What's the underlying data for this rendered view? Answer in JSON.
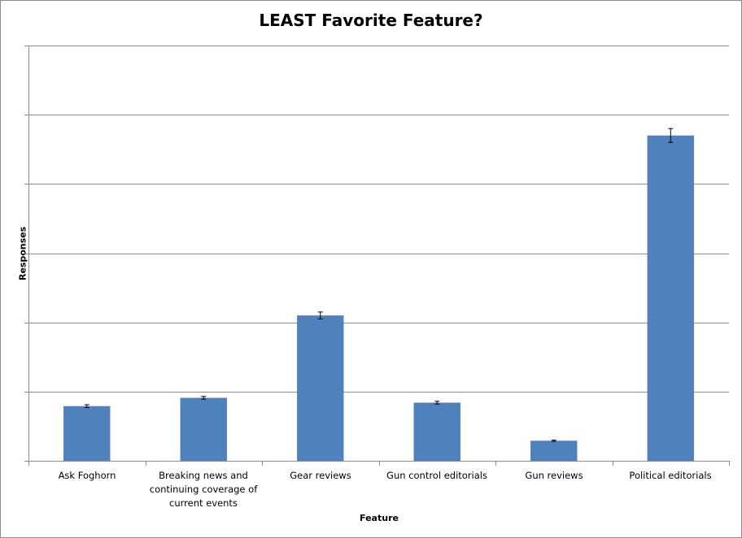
{
  "chart_data": {
    "type": "bar",
    "title": "LEAST Favorite Feature?",
    "xlabel": "Feature",
    "ylabel": "Responses",
    "categories": [
      "Ask Foghorn",
      "Breaking news and continuing coverage of current events",
      "Gear reviews",
      "Gun control editorials",
      "Gun reviews",
      "Political editorials"
    ],
    "values": [
      0.79,
      0.91,
      2.1,
      0.84,
      0.29,
      4.7
    ],
    "errors": [
      0.02,
      0.02,
      0.05,
      0.02,
      0.01,
      0.1
    ],
    "ylim": [
      0,
      6
    ],
    "gridlines": true,
    "y_tick_labels_shown": false,
    "legend": "none",
    "bar_color": "#4f81bd"
  }
}
